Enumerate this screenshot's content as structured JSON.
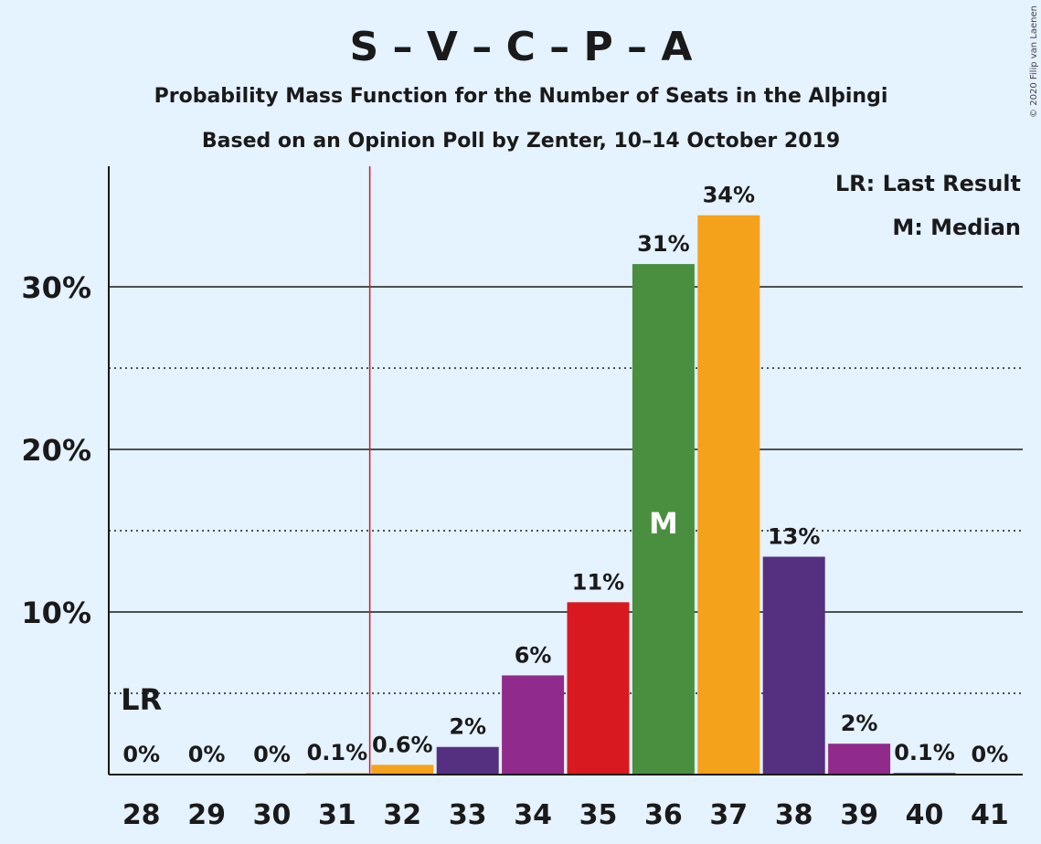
{
  "chart_data": {
    "type": "bar",
    "title": "S – V – C – P – A",
    "subtitle1": "Probability Mass Function for the Number of Seats in the Alþingi",
    "subtitle2": "Based on an Opinion Poll by Zenter, 10–14 October 2019",
    "credit": "© 2020 Filip van Laenen",
    "categories": [
      "28",
      "29",
      "30",
      "31",
      "32",
      "33",
      "34",
      "35",
      "36",
      "37",
      "38",
      "39",
      "40",
      "41"
    ],
    "values": [
      0,
      0,
      0,
      0.1,
      0.6,
      1.7,
      6.1,
      10.6,
      31.4,
      34.4,
      13.4,
      1.9,
      0.1,
      0
    ],
    "labels": [
      "0%",
      "0%",
      "0%",
      "0.1%",
      "0.6%",
      "2%",
      "6%",
      "11%",
      "31%",
      "34%",
      "13%",
      "2%",
      "0.1%",
      "0%"
    ],
    "colors": [
      "#f4a21b",
      "#f4a21b",
      "#f4a21b",
      "#f4a21b",
      "#f4a21b",
      "#563080",
      "#902b8c",
      "#d8191f",
      "#4a8f40",
      "#f4a21b",
      "#563080",
      "#902b8c",
      "#563080",
      "#f4a21b"
    ],
    "ylim": [
      0,
      37.5
    ],
    "yticks_major": [
      10,
      20,
      30
    ],
    "ytick_labels": [
      "10%",
      "20%",
      "30%"
    ],
    "yticks_minor": [
      5,
      15,
      25
    ],
    "last_result": {
      "seat": "28",
      "label": "LR"
    },
    "median": {
      "seat": "36",
      "label": "M"
    },
    "threshold_line_after": "31",
    "legend": [
      "LR: Last Result",
      "M: Median"
    ],
    "legend_position": "top-right",
    "grid": true
  }
}
